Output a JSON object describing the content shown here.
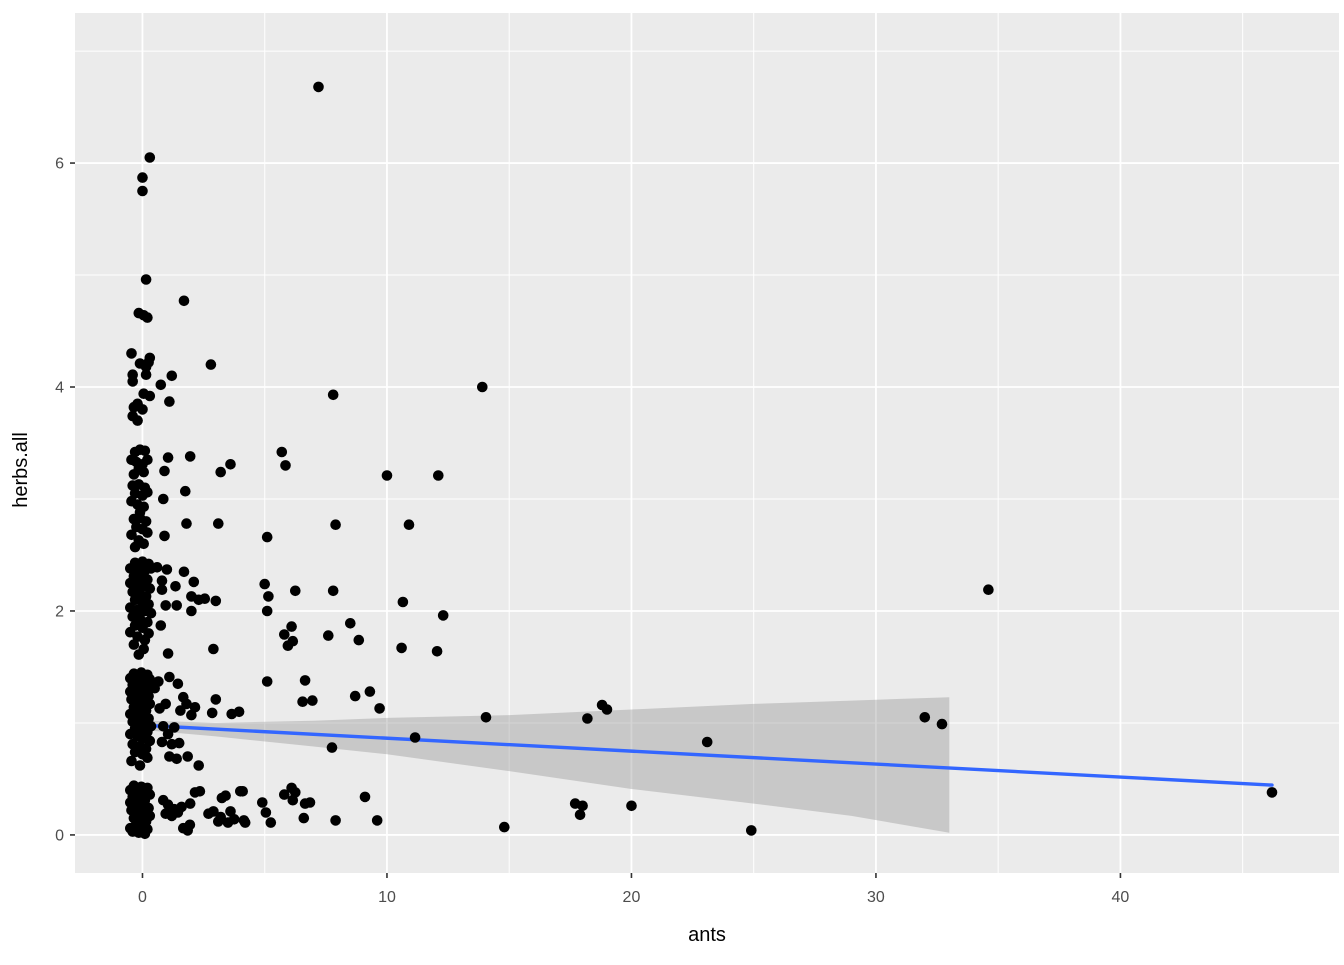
{
  "figure": {
    "kind": "ggplot-scatter-with-lm-smooth",
    "panel_bg": "#EBEBEB",
    "grid_color": "#FFFFFF",
    "point_color": "#000000",
    "smooth_line_color": "#3366FF",
    "ribbon_color": "#999999",
    "ribbon_opacity": 0.42,
    "tick_text_color": "#4d4d4d",
    "axis_title_color": "#000000"
  },
  "chart_data": {
    "type": "scatter",
    "title": "",
    "xlabel": "ants",
    "ylabel": "herbs.all",
    "xlim": [
      -2.76,
      48.94
    ],
    "ylim": [
      -0.34,
      7.34
    ],
    "x_ticks": [
      0,
      10,
      20,
      30,
      40
    ],
    "y_ticks": [
      0,
      2,
      4,
      6
    ],
    "x_minor": [
      5,
      15,
      25,
      35,
      45
    ],
    "y_minor": [
      1,
      3,
      5,
      7
    ],
    "legend": "none",
    "grid": "major+minor white on gray panel",
    "smooth": {
      "method": "lm",
      "line": [
        [
          0.4,
          0.975
        ],
        [
          46.2,
          0.445
        ]
      ],
      "ribbon_upper": [
        [
          0.4,
          1.02
        ],
        [
          3,
          1.0
        ],
        [
          7,
          1.02
        ],
        [
          10,
          1.045
        ],
        [
          15,
          1.07
        ],
        [
          20,
          1.12
        ],
        [
          25,
          1.17
        ],
        [
          29,
          1.2
        ],
        [
          33,
          1.23
        ]
      ],
      "ribbon_lower": [
        [
          33,
          0.02
        ],
        [
          29,
          0.17
        ],
        [
          25,
          0.28
        ],
        [
          20,
          0.41
        ],
        [
          15,
          0.57
        ],
        [
          10,
          0.72
        ],
        [
          7,
          0.79
        ],
        [
          3,
          0.88
        ],
        [
          0.4,
          0.93
        ]
      ]
    },
    "points": [
      [
        7.2,
        6.68
      ],
      [
        0.3,
        6.05
      ],
      [
        0,
        5.87
      ],
      [
        0,
        5.75
      ],
      [
        0.15,
        4.96
      ],
      [
        1.7,
        4.77
      ],
      [
        -0.15,
        4.66
      ],
      [
        0.05,
        4.64
      ],
      [
        0.2,
        4.62
      ],
      [
        -0.45,
        4.3
      ],
      [
        0.3,
        4.26
      ],
      [
        -0.1,
        4.21
      ],
      [
        0.25,
        4.22
      ],
      [
        0.15,
        4.18
      ],
      [
        2.8,
        4.2
      ],
      [
        -0.4,
        4.11
      ],
      [
        0.15,
        4.11
      ],
      [
        1.2,
        4.1
      ],
      [
        -0.4,
        4.05
      ],
      [
        0.75,
        4.02
      ],
      [
        13.9,
        4
      ],
      [
        0.05,
        3.94
      ],
      [
        7.8,
        3.93
      ],
      [
        0.3,
        3.92
      ],
      [
        1.1,
        3.87
      ],
      [
        -0.2,
        3.85
      ],
      [
        -0.35,
        3.82
      ],
      [
        0,
        3.8
      ],
      [
        -0.4,
        3.74
      ],
      [
        -0.2,
        3.7
      ],
      [
        -0.3,
        3.42
      ],
      [
        -0.1,
        3.44
      ],
      [
        0.1,
        3.43
      ],
      [
        -0.45,
        3.35
      ],
      [
        -0.25,
        3.33
      ],
      [
        0,
        3.31
      ],
      [
        0.2,
        3.35
      ],
      [
        -0.15,
        3.27
      ],
      [
        0.05,
        3.24
      ],
      [
        -0.35,
        3.22
      ],
      [
        1.05,
        3.37
      ],
      [
        1.95,
        3.38
      ],
      [
        0.9,
        3.25
      ],
      [
        3.2,
        3.24
      ],
      [
        3.6,
        3.31
      ],
      [
        5.7,
        3.42
      ],
      [
        5.85,
        3.3
      ],
      [
        10,
        3.21
      ],
      [
        12.1,
        3.21
      ],
      [
        -0.4,
        3.12
      ],
      [
        -0.15,
        3.13
      ],
      [
        0.1,
        3.1
      ],
      [
        -0.3,
        3.05
      ],
      [
        0,
        3.03
      ],
      [
        0.2,
        3.06
      ],
      [
        -0.45,
        2.98
      ],
      [
        -0.2,
        2.95
      ],
      [
        0.05,
        2.93
      ],
      [
        -0.1,
        2.88
      ],
      [
        0.85,
        3
      ],
      [
        1.75,
        3.07
      ],
      [
        -0.35,
        2.82
      ],
      [
        -0.1,
        2.83
      ],
      [
        0.15,
        2.8
      ],
      [
        -0.25,
        2.75
      ],
      [
        0,
        2.73
      ],
      [
        -0.45,
        2.68
      ],
      [
        0.2,
        2.7
      ],
      [
        -0.15,
        2.63
      ],
      [
        0.05,
        2.6
      ],
      [
        -0.3,
        2.57
      ],
      [
        0.9,
        2.67
      ],
      [
        1.8,
        2.78
      ],
      [
        3.1,
        2.78
      ],
      [
        5.1,
        2.66
      ],
      [
        7.9,
        2.77
      ],
      [
        10.9,
        2.77
      ],
      [
        -0.3,
        2.43
      ],
      [
        0,
        2.44
      ],
      [
        0.25,
        2.42
      ],
      [
        -0.5,
        2.38
      ],
      [
        -0.2,
        2.37
      ],
      [
        0.1,
        2.36
      ],
      [
        0.35,
        2.38
      ],
      [
        -0.35,
        2.31
      ],
      [
        -0.05,
        2.3
      ],
      [
        0.2,
        2.28
      ],
      [
        -0.5,
        2.25
      ],
      [
        -0.25,
        2.23
      ],
      [
        0.05,
        2.22
      ],
      [
        0.3,
        2.2
      ],
      [
        -0.4,
        2.17
      ],
      [
        -0.1,
        2.15
      ],
      [
        0.15,
        2.13
      ],
      [
        -0.3,
        2.1
      ],
      [
        0,
        2.08
      ],
      [
        0.25,
        2.06
      ],
      [
        -0.5,
        2.03
      ],
      [
        -0.2,
        2.01
      ],
      [
        0.1,
        2
      ],
      [
        0.35,
        1.98
      ],
      [
        -0.4,
        1.95
      ],
      [
        -0.1,
        1.93
      ],
      [
        0.2,
        1.9
      ],
      [
        -0.3,
        1.87
      ],
      [
        0,
        1.85
      ],
      [
        -0.5,
        1.81
      ],
      [
        0.25,
        1.8
      ],
      [
        -0.2,
        1.77
      ],
      [
        0.1,
        1.74
      ],
      [
        -0.35,
        1.7
      ],
      [
        0.05,
        1.66
      ],
      [
        -0.15,
        1.61
      ],
      [
        0.6,
        2.39
      ],
      [
        1,
        2.37
      ],
      [
        1.7,
        2.35
      ],
      [
        2.1,
        2.26
      ],
      [
        0.8,
        2.27
      ],
      [
        1.35,
        2.22
      ],
      [
        0.8,
        2.19
      ],
      [
        2,
        2.13
      ],
      [
        2.3,
        2.1
      ],
      [
        2.55,
        2.11
      ],
      [
        3,
        2.09
      ],
      [
        0.95,
        2.05
      ],
      [
        1.4,
        2.05
      ],
      [
        2,
        2
      ],
      [
        5,
        2.24
      ],
      [
        5.15,
        2.13
      ],
      [
        5.1,
        2
      ],
      [
        6.25,
        2.18
      ],
      [
        7.8,
        2.18
      ],
      [
        6.1,
        1.86
      ],
      [
        5.8,
        1.79
      ],
      [
        6.15,
        1.73
      ],
      [
        5.95,
        1.69
      ],
      [
        7.6,
        1.78
      ],
      [
        8.5,
        1.89
      ],
      [
        8.85,
        1.74
      ],
      [
        0.75,
        1.87
      ],
      [
        1.05,
        1.62
      ],
      [
        2.9,
        1.66
      ],
      [
        10.6,
        1.67
      ],
      [
        12.05,
        1.64
      ],
      [
        12.3,
        1.96
      ],
      [
        10.65,
        2.08
      ],
      [
        34.6,
        2.19
      ],
      [
        -0.35,
        1.44
      ],
      [
        -0.05,
        1.45
      ],
      [
        0.2,
        1.43
      ],
      [
        -0.5,
        1.4
      ],
      [
        -0.25,
        1.38
      ],
      [
        0.05,
        1.37
      ],
      [
        0.3,
        1.39
      ],
      [
        -0.4,
        1.34
      ],
      [
        -0.15,
        1.32
      ],
      [
        0.1,
        1.31
      ],
      [
        0.35,
        1.33
      ],
      [
        -0.5,
        1.28
      ],
      [
        -0.3,
        1.26
      ],
      [
        0,
        1.25
      ],
      [
        0.25,
        1.24
      ],
      [
        -0.45,
        1.21
      ],
      [
        -0.2,
        1.19
      ],
      [
        0.05,
        1.18
      ],
      [
        0.3,
        1.17
      ],
      [
        -0.35,
        1.14
      ],
      [
        -0.1,
        1.12
      ],
      [
        0.15,
        1.11
      ],
      [
        -0.5,
        1.08
      ],
      [
        -0.25,
        1.06
      ],
      [
        0,
        1.05
      ],
      [
        0.25,
        1.04
      ],
      [
        -0.4,
        1.01
      ],
      [
        -0.15,
        1
      ],
      [
        0.1,
        0.99
      ],
      [
        0.35,
        0.97
      ],
      [
        -0.3,
        0.95
      ],
      [
        0,
        0.93
      ],
      [
        0.2,
        0.92
      ],
      [
        -0.5,
        0.9
      ],
      [
        -0.2,
        0.88
      ],
      [
        0.05,
        0.86
      ],
      [
        0.3,
        0.84
      ],
      [
        -0.4,
        0.81
      ],
      [
        -0.1,
        0.79
      ],
      [
        0.15,
        0.77
      ],
      [
        -0.3,
        0.74
      ],
      [
        0,
        0.72
      ],
      [
        0.2,
        0.69
      ],
      [
        -0.45,
        0.66
      ],
      [
        -0.1,
        0.62
      ],
      [
        0.65,
        1.37
      ],
      [
        1.1,
        1.41
      ],
      [
        1.45,
        1.35
      ],
      [
        0.5,
        1.31
      ],
      [
        5.1,
        1.37
      ],
      [
        6.65,
        1.38
      ],
      [
        0.95,
        1.17
      ],
      [
        0.7,
        1.13
      ],
      [
        1.67,
        1.23
      ],
      [
        1.8,
        1.17
      ],
      [
        1.55,
        1.11
      ],
      [
        2.15,
        1.14
      ],
      [
        2,
        1.07
      ],
      [
        3,
        1.21
      ],
      [
        2.85,
        1.09
      ],
      [
        3.65,
        1.08
      ],
      [
        3.95,
        1.1
      ],
      [
        6.55,
        1.19
      ],
      [
        6.95,
        1.2
      ],
      [
        8.7,
        1.24
      ],
      [
        9.3,
        1.28
      ],
      [
        9.7,
        1.13
      ],
      [
        0.85,
        0.97
      ],
      [
        1.3,
        0.96
      ],
      [
        1.05,
        0.9
      ],
      [
        0.8,
        0.83
      ],
      [
        1.2,
        0.81
      ],
      [
        1.5,
        0.82
      ],
      [
        1.1,
        0.7
      ],
      [
        1.4,
        0.68
      ],
      [
        1.85,
        0.7
      ],
      [
        2.3,
        0.62
      ],
      [
        7.75,
        0.78
      ],
      [
        11.15,
        0.87
      ],
      [
        14.05,
        1.05
      ],
      [
        18.2,
        1.04
      ],
      [
        18.8,
        1.16
      ],
      [
        19,
        1.12
      ],
      [
        23.1,
        0.83
      ],
      [
        32,
        1.05
      ],
      [
        32.7,
        0.99
      ],
      [
        46.2,
        0.38
      ],
      [
        -0.35,
        0.44
      ],
      [
        -0.05,
        0.43
      ],
      [
        0.2,
        0.42
      ],
      [
        -0.5,
        0.4
      ],
      [
        -0.25,
        0.38
      ],
      [
        0.05,
        0.37
      ],
      [
        0.3,
        0.36
      ],
      [
        -0.4,
        0.34
      ],
      [
        -0.15,
        0.33
      ],
      [
        0.1,
        0.31
      ],
      [
        -0.5,
        0.29
      ],
      [
        -0.3,
        0.27
      ],
      [
        0,
        0.26
      ],
      [
        0.25,
        0.24
      ],
      [
        -0.45,
        0.22
      ],
      [
        -0.2,
        0.2
      ],
      [
        0.05,
        0.19
      ],
      [
        0.3,
        0.17
      ],
      [
        -0.35,
        0.15
      ],
      [
        -0.1,
        0.13
      ],
      [
        0.15,
        0.12
      ],
      [
        -0.25,
        0.1
      ],
      [
        0,
        0.08
      ],
      [
        -0.5,
        0.06
      ],
      [
        0.2,
        0.05
      ],
      [
        -0.4,
        0.03
      ],
      [
        -0.15,
        0.02
      ],
      [
        0.1,
        0.01
      ],
      [
        0.85,
        0.31
      ],
      [
        1.05,
        0.27
      ],
      [
        1.3,
        0.23
      ],
      [
        0.95,
        0.19
      ],
      [
        1.2,
        0.17
      ],
      [
        1.45,
        0.2
      ],
      [
        1.6,
        0.25
      ],
      [
        1.95,
        0.28
      ],
      [
        2.15,
        0.38
      ],
      [
        2.35,
        0.39
      ],
      [
        1.67,
        0.06
      ],
      [
        1.94,
        0.09
      ],
      [
        1.85,
        0.04
      ],
      [
        2.7,
        0.19
      ],
      [
        2.9,
        0.21
      ],
      [
        3.2,
        0.16
      ],
      [
        3.1,
        0.12
      ],
      [
        3.4,
        0.35
      ],
      [
        4.1,
        0.39
      ],
      [
        3.6,
        0.21
      ],
      [
        3.75,
        0.14
      ],
      [
        3.5,
        0.11
      ],
      [
        4.15,
        0.13
      ],
      [
        4.9,
        0.29
      ],
      [
        5.05,
        0.2
      ],
      [
        5.25,
        0.11
      ],
      [
        4.2,
        0.11
      ],
      [
        4,
        0.39
      ],
      [
        3.25,
        0.33
      ],
      [
        5.8,
        0.36
      ],
      [
        6.1,
        0.42
      ],
      [
        6.25,
        0.38
      ],
      [
        6.15,
        0.31
      ],
      [
        6.65,
        0.28
      ],
      [
        6.85,
        0.29
      ],
      [
        6.6,
        0.15
      ],
      [
        7.9,
        0.13
      ],
      [
        9.1,
        0.34
      ],
      [
        9.6,
        0.13
      ],
      [
        14.8,
        0.07
      ],
      [
        17.7,
        0.28
      ],
      [
        18,
        0.26
      ],
      [
        17.9,
        0.18
      ],
      [
        20,
        0.26
      ],
      [
        24.9,
        0.04
      ]
    ]
  }
}
